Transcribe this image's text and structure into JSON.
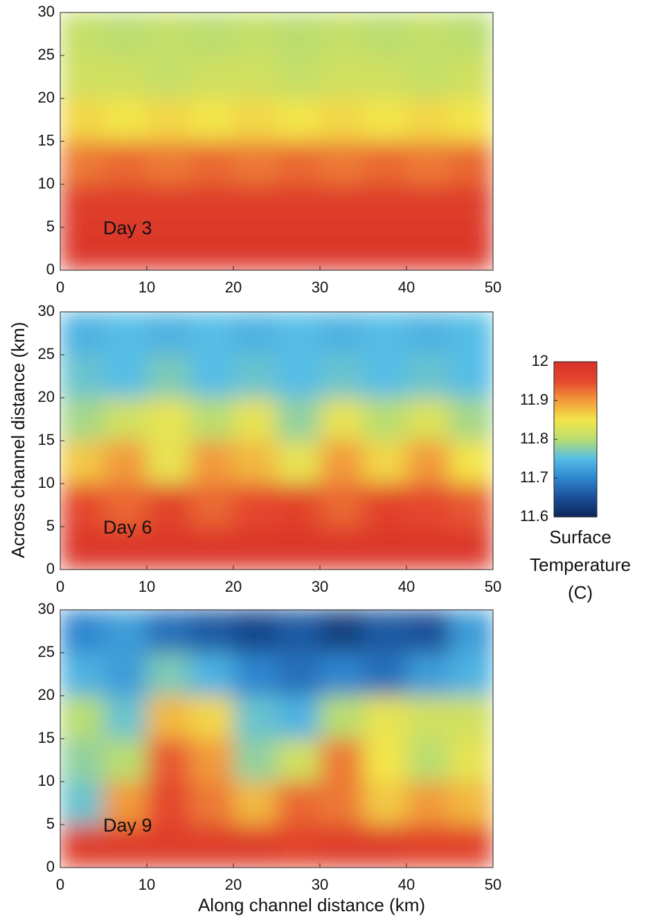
{
  "axes": {
    "x_label": "Along channel distance (km)",
    "y_label": "Across channel distance (km)"
  },
  "colorbar": {
    "label": [
      "Surface",
      "Temperature",
      "(C)"
    ],
    "zlim": [
      11.6,
      12
    ],
    "ticks": [
      11.6,
      11.7,
      11.8,
      11.9,
      12
    ],
    "colors": [
      "#0c2658",
      "#1b4f98",
      "#2f86cf",
      "#55bde6",
      "#b9dd70",
      "#f3e54a",
      "#f29a3a",
      "#e4472d",
      "#d6302a"
    ]
  },
  "chart_data": [
    {
      "type": "heatmap",
      "annotation": "Day 3",
      "xlim": [
        0,
        50
      ],
      "ylim": [
        0,
        30
      ],
      "xticks": [
        0,
        10,
        20,
        30,
        40,
        50
      ],
      "yticks": [
        0,
        5,
        10,
        15,
        20,
        25,
        30
      ],
      "x": [
        2.5,
        7.5,
        12.5,
        17.5,
        22.5,
        27.5,
        32.5,
        37.5,
        42.5,
        47.5
      ],
      "y": [
        2.5,
        7.5,
        12.5,
        17.5,
        22.5,
        27.5
      ],
      "z": [
        [
          11.98,
          11.98,
          11.98,
          11.98,
          11.98,
          11.98,
          11.98,
          11.98,
          11.98,
          11.98
        ],
        [
          11.97,
          11.97,
          11.97,
          11.97,
          11.97,
          11.97,
          11.97,
          11.97,
          11.97,
          11.97
        ],
        [
          11.92,
          11.93,
          11.92,
          11.93,
          11.92,
          11.93,
          11.92,
          11.93,
          11.92,
          11.93
        ],
        [
          11.86,
          11.85,
          11.86,
          11.85,
          11.86,
          11.85,
          11.86,
          11.85,
          11.86,
          11.85
        ],
        [
          11.82,
          11.82,
          11.81,
          11.82,
          11.82,
          11.81,
          11.82,
          11.82,
          11.81,
          11.82
        ],
        [
          11.81,
          11.8,
          11.81,
          11.8,
          11.81,
          11.8,
          11.81,
          11.8,
          11.81,
          11.8
        ]
      ]
    },
    {
      "type": "heatmap",
      "annotation": "Day 6",
      "xlim": [
        0,
        50
      ],
      "ylim": [
        0,
        30
      ],
      "xticks": [
        0,
        10,
        20,
        30,
        40,
        50
      ],
      "yticks": [
        0,
        5,
        10,
        15,
        20,
        25,
        30
      ],
      "x": [
        2.5,
        7.5,
        12.5,
        17.5,
        22.5,
        27.5,
        32.5,
        37.5,
        42.5,
        47.5
      ],
      "y": [
        2.5,
        7.5,
        12.5,
        17.5,
        22.5,
        27.5
      ],
      "z": [
        [
          11.98,
          11.98,
          11.98,
          11.98,
          11.98,
          11.98,
          11.98,
          11.98,
          11.98,
          11.98
        ],
        [
          11.95,
          11.93,
          11.96,
          11.93,
          11.95,
          11.96,
          11.93,
          11.96,
          11.95,
          11.94
        ],
        [
          11.87,
          11.9,
          11.84,
          11.9,
          11.88,
          11.84,
          11.9,
          11.86,
          11.9,
          11.85
        ],
        [
          11.79,
          11.82,
          11.84,
          11.8,
          11.84,
          11.78,
          11.84,
          11.8,
          11.83,
          11.79
        ],
        [
          11.76,
          11.75,
          11.77,
          11.75,
          11.76,
          11.75,
          11.76,
          11.75,
          11.76,
          11.75
        ],
        [
          11.74,
          11.75,
          11.74,
          11.75,
          11.74,
          11.75,
          11.74,
          11.75,
          11.74,
          11.75
        ]
      ]
    },
    {
      "type": "heatmap",
      "annotation": "Day 9",
      "xlim": [
        0,
        50
      ],
      "ylim": [
        0,
        30
      ],
      "xticks": [
        0,
        10,
        20,
        30,
        40,
        50
      ],
      "yticks": [
        0,
        5,
        10,
        15,
        20,
        25,
        30
      ],
      "x": [
        2.5,
        7.5,
        12.5,
        17.5,
        22.5,
        27.5,
        32.5,
        37.5,
        42.5,
        47.5
      ],
      "y": [
        2.5,
        7.5,
        12.5,
        17.5,
        22.5,
        27.5
      ],
      "z": [
        [
          11.97,
          11.97,
          11.97,
          11.97,
          11.97,
          11.96,
          11.97,
          11.97,
          11.96,
          11.96
        ],
        [
          11.76,
          11.9,
          11.95,
          11.92,
          11.88,
          11.93,
          11.92,
          11.87,
          11.9,
          11.88
        ],
        [
          11.78,
          11.8,
          11.94,
          11.9,
          11.78,
          11.82,
          11.92,
          11.85,
          11.8,
          11.84
        ],
        [
          11.8,
          11.76,
          11.88,
          11.86,
          11.76,
          11.74,
          11.8,
          11.84,
          11.82,
          11.82
        ],
        [
          11.74,
          11.72,
          11.77,
          11.74,
          11.7,
          11.68,
          11.7,
          11.68,
          11.72,
          11.74
        ],
        [
          11.7,
          11.72,
          11.68,
          11.66,
          11.64,
          11.66,
          11.63,
          11.66,
          11.65,
          11.72
        ]
      ]
    }
  ]
}
